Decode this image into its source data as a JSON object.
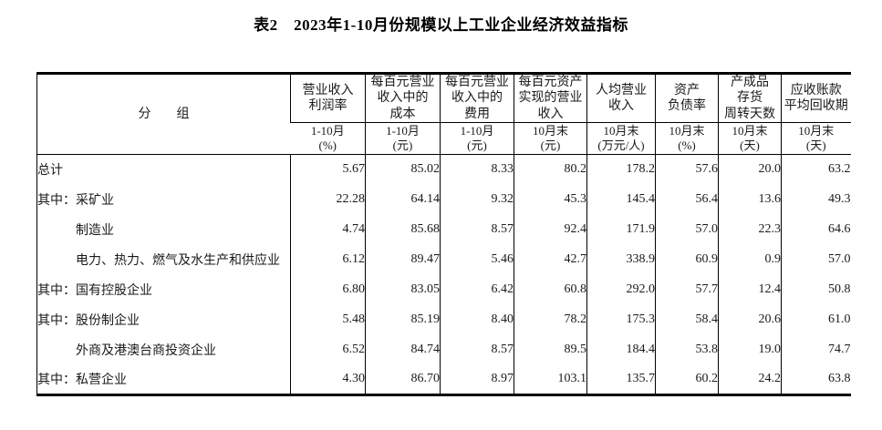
{
  "title": "表2　2023年1-10月份规模以上工业企业经济效益指标",
  "table": {
    "group_header": "分　　组",
    "columns": [
      {
        "label": "营业收入\n利润率",
        "period": "1-10月",
        "unit": "(%)"
      },
      {
        "label": "每百元营业\n收入中的\n成本",
        "period": "1-10月",
        "unit": "(元)"
      },
      {
        "label": "每百元营业\n收入中的\n费用",
        "period": "1-10月",
        "unit": "(元)"
      },
      {
        "label": "每百元资产\n实现的营业\n收入",
        "period": "10月末",
        "unit": "(元)"
      },
      {
        "label": "人均营业\n收入",
        "period": "10月末",
        "unit": "(万元/人)"
      },
      {
        "label": "资产\n负债率",
        "period": "10月末",
        "unit": "(%)"
      },
      {
        "label": "产成品\n存货\n周转天数",
        "period": "10月末",
        "unit": "(天)"
      },
      {
        "label": "应收账款\n平均回收期",
        "period": "10月末",
        "unit": "(天)"
      }
    ],
    "rows": [
      {
        "label": "总计",
        "indent": false,
        "values": [
          "5.67",
          "85.02",
          "8.33",
          "80.2",
          "178.2",
          "57.6",
          "20.0",
          "63.2"
        ]
      },
      {
        "label": "其中：采矿业",
        "indent": false,
        "values": [
          "22.28",
          "64.14",
          "9.32",
          "45.3",
          "145.4",
          "56.4",
          "13.6",
          "49.3"
        ]
      },
      {
        "label": "制造业",
        "indent": true,
        "values": [
          "4.74",
          "85.68",
          "8.57",
          "92.4",
          "171.9",
          "57.0",
          "22.3",
          "64.6"
        ]
      },
      {
        "label": "电力、热力、燃气及水生产和供应业",
        "indent": true,
        "values": [
          "6.12",
          "89.47",
          "5.46",
          "42.7",
          "338.9",
          "60.9",
          "0.9",
          "57.0"
        ]
      },
      {
        "label": "其中：国有控股企业",
        "indent": false,
        "values": [
          "6.80",
          "83.05",
          "6.42",
          "60.8",
          "292.0",
          "57.7",
          "12.4",
          "50.8"
        ]
      },
      {
        "label": "其中：股份制企业",
        "indent": false,
        "values": [
          "5.48",
          "85.19",
          "8.40",
          "78.2",
          "175.3",
          "58.4",
          "20.6",
          "61.0"
        ]
      },
      {
        "label": "外商及港澳台商投资企业",
        "indent": true,
        "values": [
          "6.52",
          "84.74",
          "8.57",
          "89.5",
          "184.4",
          "53.8",
          "19.0",
          "74.7"
        ]
      },
      {
        "label": "其中：私营企业",
        "indent": false,
        "values": [
          "4.30",
          "86.70",
          "8.97",
          "103.1",
          "135.7",
          "60.2",
          "24.2",
          "63.8"
        ]
      }
    ]
  },
  "colors": {
    "text": "#1a1a1a",
    "border": "#000000",
    "background": "#ffffff"
  }
}
